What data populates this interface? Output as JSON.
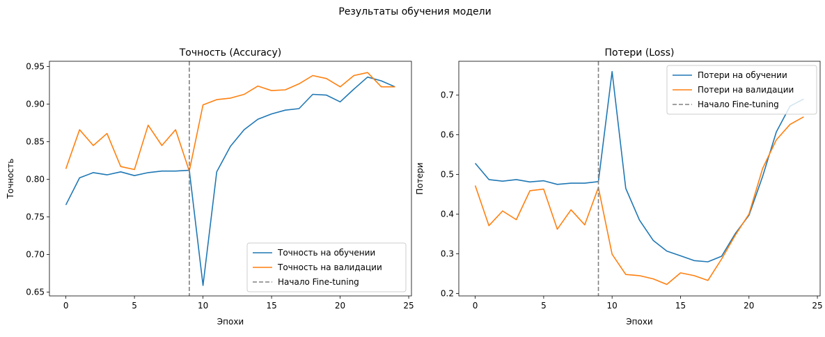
{
  "figure": {
    "suptitle": "Результаты обучения модели"
  },
  "chart_data": [
    {
      "type": "line",
      "title": "Точность (Accuracy)",
      "xlabel": "Эпохи",
      "ylabel": "Точность",
      "xlim": [
        -1.2,
        25.2
      ],
      "ylim": [
        0.645,
        0.957
      ],
      "xticks": [
        0,
        5,
        10,
        15,
        20,
        25
      ],
      "yticks": [
        0.65,
        0.7,
        0.75,
        0.8,
        0.85,
        0.9,
        0.95
      ],
      "ytick_labels": [
        "0.65",
        "0.70",
        "0.75",
        "0.80",
        "0.85",
        "0.90",
        "0.95"
      ],
      "legend_position": "lower-right",
      "vline": {
        "x": 9,
        "name": "Начало Fine-tuning",
        "color": "#808080"
      },
      "x": [
        0,
        1,
        2,
        3,
        4,
        5,
        6,
        7,
        8,
        9,
        10,
        11,
        12,
        13,
        14,
        15,
        16,
        17,
        18,
        19,
        20,
        21,
        22,
        23,
        24
      ],
      "series": [
        {
          "name": "Точность на обучении",
          "color": "#1f77b4",
          "values": [
            0.766,
            0.802,
            0.809,
            0.806,
            0.81,
            0.805,
            0.809,
            0.811,
            0.811,
            0.812,
            0.659,
            0.81,
            0.844,
            0.866,
            0.88,
            0.887,
            0.892,
            0.894,
            0.913,
            0.912,
            0.903,
            0.92,
            0.936,
            0.931,
            0.923
          ]
        },
        {
          "name": "Точность на валидации",
          "color": "#ff7f0e",
          "values": [
            0.814,
            0.866,
            0.845,
            0.861,
            0.817,
            0.813,
            0.872,
            0.845,
            0.866,
            0.811,
            0.899,
            0.906,
            0.908,
            0.913,
            0.924,
            0.918,
            0.919,
            0.927,
            0.938,
            0.934,
            0.923,
            0.938,
            0.942,
            0.923,
            0.923
          ]
        }
      ]
    },
    {
      "type": "line",
      "title": "Потери (Loss)",
      "xlabel": "Эпохи",
      "ylabel": "Потери",
      "xlim": [
        -1.2,
        25.2
      ],
      "ylim": [
        0.194,
        0.785
      ],
      "xticks": [
        0,
        5,
        10,
        15,
        20,
        25
      ],
      "yticks": [
        0.2,
        0.3,
        0.4,
        0.5,
        0.6,
        0.7
      ],
      "ytick_labels": [
        "0.2",
        "0.3",
        "0.4",
        "0.5",
        "0.6",
        "0.7"
      ],
      "legend_position": "upper-right",
      "vline": {
        "x": 9,
        "name": "Начало Fine-tuning",
        "color": "#808080"
      },
      "x": [
        0,
        1,
        2,
        3,
        4,
        5,
        6,
        7,
        8,
        9,
        10,
        11,
        12,
        13,
        14,
        15,
        16,
        17,
        18,
        19,
        20,
        21,
        22,
        23,
        24
      ],
      "series": [
        {
          "name": "Потери на обучении",
          "color": "#1f77b4",
          "values": [
            0.528,
            0.487,
            0.483,
            0.487,
            0.481,
            0.484,
            0.475,
            0.478,
            0.478,
            0.482,
            0.759,
            0.465,
            0.385,
            0.334,
            0.307,
            0.295,
            0.283,
            0.28,
            0.294,
            0.351,
            0.397,
            0.495,
            0.607,
            0.672,
            0.69
          ]
        },
        {
          "name": "Потери на валидации",
          "color": "#ff7f0e",
          "values": [
            0.472,
            0.371,
            0.408,
            0.386,
            0.459,
            0.463,
            0.362,
            0.411,
            0.373,
            0.467,
            0.299,
            0.248,
            0.245,
            0.237,
            0.223,
            0.252,
            0.245,
            0.233,
            0.287,
            0.347,
            0.4,
            0.515,
            0.587,
            0.626,
            0.645
          ]
        }
      ]
    }
  ]
}
